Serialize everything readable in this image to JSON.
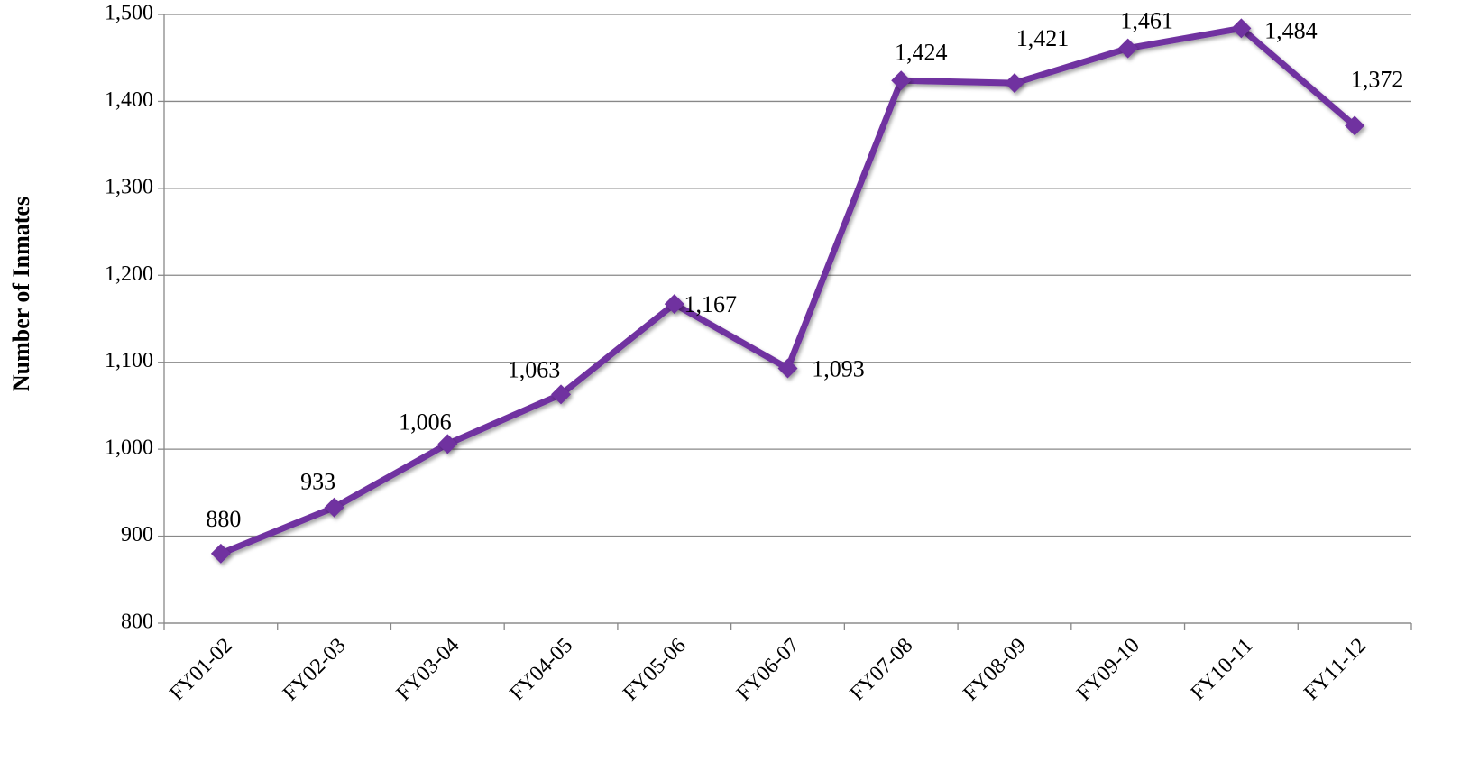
{
  "chart_data": {
    "type": "line",
    "y_label": "Number of Inmates",
    "categories": [
      "FY01-02",
      "FY02-03",
      "FY03-04",
      "FY04-05",
      "FY05-06",
      "FY06-07",
      "FY07-08",
      "FY08-09",
      "FY09-10",
      "FY10-11",
      "FY11-12"
    ],
    "series": [
      {
        "name": "Number of Inmates",
        "color": "#7030a0",
        "values": [
          880,
          933,
          1006,
          1063,
          1167,
          1093,
          1424,
          1421,
          1461,
          1484,
          1372
        ],
        "value_labels": [
          "880",
          "933",
          "1,006",
          "1,063",
          "1,167",
          "1,093",
          "1,424",
          "1,421",
          "1,461",
          "1,484",
          "1,372"
        ]
      }
    ],
    "ylim": [
      800,
      1500
    ],
    "yticks": [
      800,
      900,
      {
        "value": 1000,
        "label": "1,000"
      },
      {
        "value": 1100,
        "label": "1,100"
      },
      {
        "value": 1200,
        "label": "1,200"
      },
      {
        "value": 1300,
        "label": "1,300"
      },
      {
        "value": 1400,
        "label": "1,400"
      },
      {
        "value": 1500,
        "label": "1,500"
      }
    ],
    "grid": true
  }
}
